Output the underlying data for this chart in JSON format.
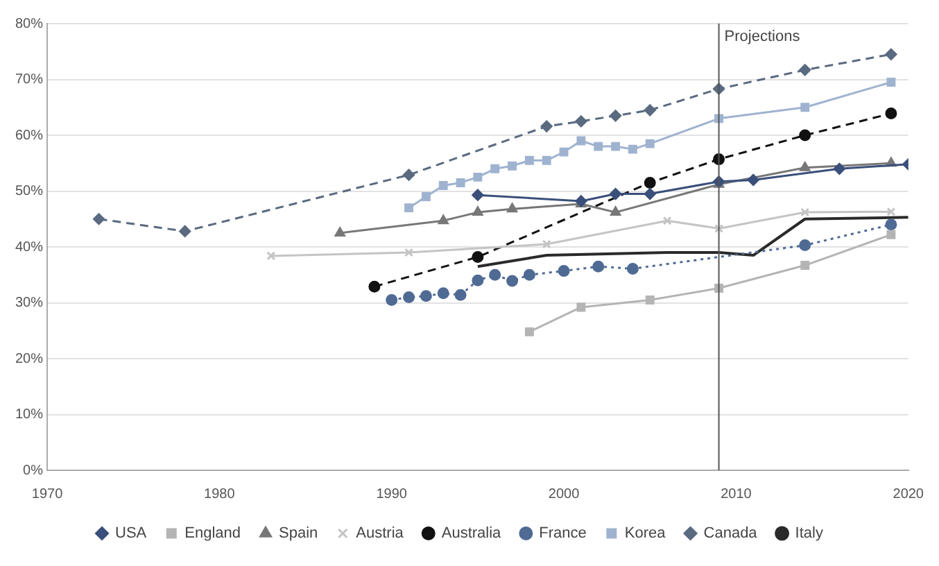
{
  "chart_data": {
    "type": "line",
    "xlim": [
      1970,
      2020
    ],
    "xticks": [
      1970,
      1980,
      1990,
      2000,
      2010,
      2020
    ],
    "ylim": [
      0,
      80
    ],
    "yticks": [
      {
        "value": 0,
        "label": "0%"
      },
      {
        "value": 10,
        "label": "10%"
      },
      {
        "value": 20,
        "label": "20%"
      },
      {
        "value": 30,
        "label": "30%"
      },
      {
        "value": 40,
        "label": "40%"
      },
      {
        "value": 50,
        "label": "50%"
      },
      {
        "value": 60,
        "label": "60%"
      },
      {
        "value": 70,
        "label": "70%"
      },
      {
        "value": 80,
        "label": "80%"
      }
    ],
    "grid": "y",
    "legend": "bottom",
    "ref_lines": [
      {
        "axis": "x",
        "value": 2009,
        "label": "Projections",
        "color": "#555555"
      }
    ],
    "series": [
      {
        "name": "USA",
        "color": "#3a4f7a",
        "marker": "diamond",
        "line_style": "solid",
        "x": [
          1995,
          2001,
          2003,
          2005,
          2009,
          2011,
          2016,
          2020
        ],
        "values": [
          49.3,
          48.2,
          49.5,
          49.5,
          51.7,
          52,
          54,
          54.8
        ]
      },
      {
        "name": "England",
        "color": "#b4b4b4",
        "marker": "square",
        "line_style": "solid",
        "x": [
          1998,
          2001,
          2005,
          2009,
          2014,
          2019
        ],
        "values": [
          24.8,
          29.2,
          30.5,
          32.6,
          36.7,
          42.2
        ]
      },
      {
        "name": "Spain",
        "color": "#777777",
        "marker": "triangle",
        "line_style": "solid",
        "x": [
          1987,
          1993,
          1995,
          1997,
          2001,
          2003,
          2009,
          2014,
          2019
        ],
        "values": [
          42.5,
          44.7,
          46.2,
          46.8,
          47.7,
          46.2,
          51.2,
          54.2,
          55
        ]
      },
      {
        "name": "Austria",
        "color": "#c4c4c4",
        "marker": "cross",
        "line_style": "solid",
        "x": [
          1983,
          1991,
          1999,
          2006,
          2009,
          2014,
          2019
        ],
        "values": [
          38.4,
          39,
          40.5,
          44.7,
          43.3,
          46.2,
          46.3
        ]
      },
      {
        "name": "Australia",
        "color": "#111111",
        "marker": "circle",
        "line_style": "dashed",
        "x": [
          1989,
          1995,
          2005,
          2009,
          2014,
          2019
        ],
        "values": [
          32.9,
          38.2,
          51.5,
          55.7,
          60,
          63.9
        ]
      },
      {
        "name": "France",
        "color": "#4f6b94",
        "marker": "circle",
        "line_style": "dotted",
        "x": [
          1990,
          1991,
          1992,
          1993,
          1994,
          1995,
          1996,
          1997,
          1998,
          2000,
          2002,
          2004,
          2014,
          2019
        ],
        "values": [
          30.5,
          31,
          31.2,
          31.7,
          31.4,
          34,
          35,
          33.9,
          35,
          35.7,
          36.5,
          36.1,
          40.3,
          44
        ]
      },
      {
        "name": "Korea",
        "color": "#9fb3d0",
        "marker": "square",
        "line_style": "solid",
        "x": [
          1991,
          1992,
          1993,
          1994,
          1995,
          1996,
          1997,
          1998,
          1999,
          2000,
          2001,
          2002,
          2003,
          2004,
          2005,
          2009,
          2014,
          2019
        ],
        "values": [
          47,
          49,
          51,
          51.5,
          52.5,
          54,
          54.5,
          55.5,
          55.5,
          57,
          59,
          58,
          58,
          57.5,
          58.5,
          63,
          65,
          69.5
        ]
      },
      {
        "name": "Canada",
        "color": "#5a6a80",
        "marker": "diamond",
        "line_style": "dashed",
        "x": [
          1973,
          1978,
          1991,
          1999,
          2001,
          2003,
          2005,
          2009,
          2014,
          2019
        ],
        "values": [
          45,
          42.8,
          52.9,
          61.6,
          62.5,
          63.5,
          64.5,
          68.3,
          71.7,
          74.5
        ]
      },
      {
        "name": "Italy",
        "color": "#2a2a2a",
        "marker": "none",
        "line_style": "solid",
        "x": [
          1995,
          1999,
          2006,
          2009,
          2011,
          2014,
          2020
        ],
        "values": [
          36.5,
          38.5,
          39,
          39,
          38.5,
          45,
          45.3
        ]
      }
    ]
  }
}
